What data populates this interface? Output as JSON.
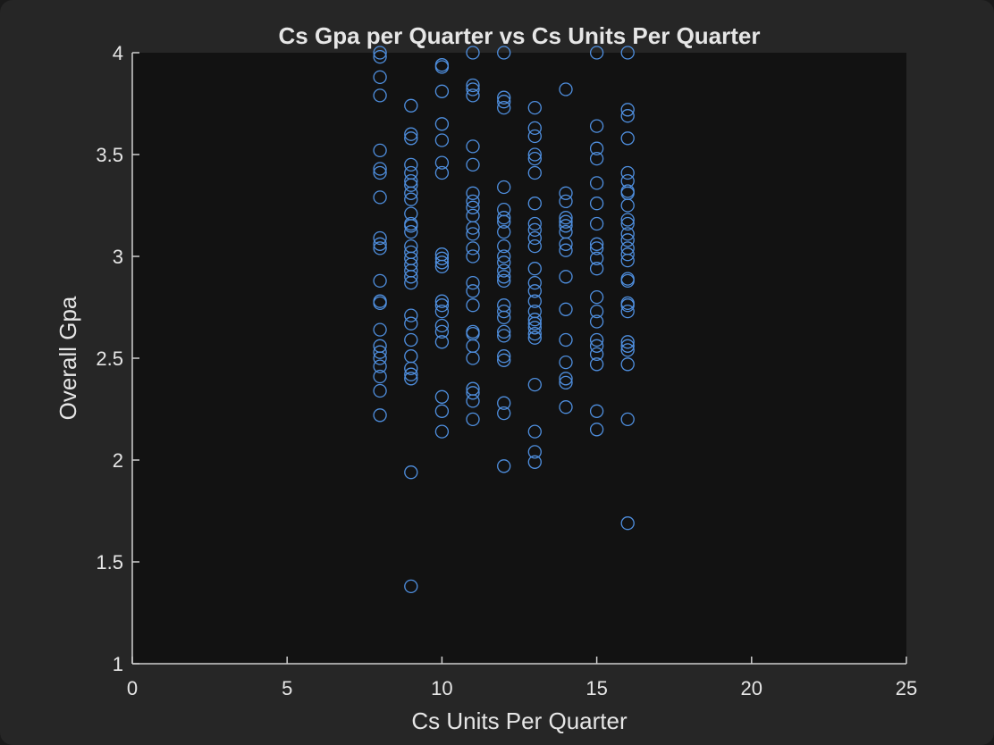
{
  "chart_data": {
    "type": "scatter",
    "title": "Cs Gpa per Quarter vs Cs Units Per Quarter",
    "xlabel": "Cs Units Per Quarter",
    "ylabel": "Overall Gpa",
    "xlim": [
      0,
      25
    ],
    "ylim": [
      1,
      4
    ],
    "xticks": [
      "0",
      "5",
      "10",
      "15",
      "20",
      "25"
    ],
    "yticks": [
      "1",
      "1.5",
      "2",
      "2.5",
      "3",
      "3.5",
      "4"
    ],
    "grid": false,
    "marker": "open-circle",
    "colors": {
      "marker": "#4f8fdf",
      "axes_background": "#121212",
      "figure_background": "#262626",
      "axis_line": "#cfcfcf",
      "text": "#e6e6e6"
    },
    "series": [
      {
        "points": [
          [
            8,
            4.0
          ],
          [
            8,
            3.98
          ],
          [
            8,
            3.88
          ],
          [
            8,
            3.79
          ],
          [
            8,
            3.52
          ],
          [
            8,
            3.43
          ],
          [
            8,
            3.41
          ],
          [
            8,
            3.29
          ],
          [
            8,
            3.09
          ],
          [
            8,
            3.06
          ],
          [
            8,
            3.04
          ],
          [
            8,
            2.88
          ],
          [
            8,
            2.78
          ],
          [
            8,
            2.77
          ],
          [
            8,
            2.64
          ],
          [
            8,
            2.56
          ],
          [
            8,
            2.53
          ],
          [
            8,
            2.5
          ],
          [
            8,
            2.46
          ],
          [
            8,
            2.41
          ],
          [
            8,
            2.34
          ],
          [
            8,
            2.22
          ],
          [
            9,
            3.74
          ],
          [
            9,
            3.6
          ],
          [
            9,
            3.58
          ],
          [
            9,
            3.45
          ],
          [
            9,
            3.41
          ],
          [
            9,
            3.37
          ],
          [
            9,
            3.35
          ],
          [
            9,
            3.31
          ],
          [
            9,
            3.28
          ],
          [
            9,
            3.21
          ],
          [
            9,
            3.16
          ],
          [
            9,
            3.15
          ],
          [
            9,
            3.12
          ],
          [
            9,
            3.05
          ],
          [
            9,
            3.02
          ],
          [
            9,
            2.99
          ],
          [
            9,
            2.96
          ],
          [
            9,
            2.93
          ],
          [
            9,
            2.9
          ],
          [
            9,
            2.87
          ],
          [
            9,
            2.71
          ],
          [
            9,
            2.67
          ],
          [
            9,
            2.59
          ],
          [
            9,
            2.51
          ],
          [
            9,
            2.45
          ],
          [
            9,
            2.42
          ],
          [
            9,
            2.4
          ],
          [
            9,
            1.94
          ],
          [
            9,
            1.38
          ],
          [
            10,
            3.94
          ],
          [
            10,
            3.93
          ],
          [
            10,
            3.81
          ],
          [
            10,
            3.65
          ],
          [
            10,
            3.57
          ],
          [
            10,
            3.46
          ],
          [
            10,
            3.41
          ],
          [
            10,
            3.01
          ],
          [
            10,
            2.99
          ],
          [
            10,
            2.97
          ],
          [
            10,
            2.95
          ],
          [
            10,
            2.78
          ],
          [
            10,
            2.76
          ],
          [
            10,
            2.73
          ],
          [
            10,
            2.66
          ],
          [
            10,
            2.63
          ],
          [
            10,
            2.58
          ],
          [
            10,
            2.31
          ],
          [
            10,
            2.24
          ],
          [
            10,
            2.14
          ],
          [
            11,
            4.0
          ],
          [
            11,
            3.84
          ],
          [
            11,
            3.82
          ],
          [
            11,
            3.79
          ],
          [
            11,
            3.54
          ],
          [
            11,
            3.45
          ],
          [
            11,
            3.31
          ],
          [
            11,
            3.27
          ],
          [
            11,
            3.24
          ],
          [
            11,
            3.2
          ],
          [
            11,
            3.14
          ],
          [
            11,
            3.11
          ],
          [
            11,
            3.04
          ],
          [
            11,
            3.0
          ],
          [
            11,
            2.87
          ],
          [
            11,
            2.83
          ],
          [
            11,
            2.76
          ],
          [
            11,
            2.63
          ],
          [
            11,
            2.62
          ],
          [
            11,
            2.56
          ],
          [
            11,
            2.5
          ],
          [
            11,
            2.35
          ],
          [
            11,
            2.33
          ],
          [
            11,
            2.29
          ],
          [
            11,
            2.2
          ],
          [
            12,
            4.0
          ],
          [
            12,
            3.78
          ],
          [
            12,
            3.76
          ],
          [
            12,
            3.73
          ],
          [
            12,
            3.34
          ],
          [
            12,
            3.23
          ],
          [
            12,
            3.19
          ],
          [
            12,
            3.17
          ],
          [
            12,
            3.12
          ],
          [
            12,
            3.05
          ],
          [
            12,
            3.0
          ],
          [
            12,
            2.97
          ],
          [
            12,
            2.93
          ],
          [
            12,
            2.9
          ],
          [
            12,
            2.88
          ],
          [
            12,
            2.76
          ],
          [
            12,
            2.73
          ],
          [
            12,
            2.7
          ],
          [
            12,
            2.63
          ],
          [
            12,
            2.61
          ],
          [
            12,
            2.51
          ],
          [
            12,
            2.49
          ],
          [
            12,
            2.28
          ],
          [
            12,
            2.23
          ],
          [
            12,
            1.97
          ],
          [
            13,
            3.73
          ],
          [
            13,
            3.63
          ],
          [
            13,
            3.59
          ],
          [
            13,
            3.5
          ],
          [
            13,
            3.48
          ],
          [
            13,
            3.41
          ],
          [
            13,
            3.26
          ],
          [
            13,
            3.16
          ],
          [
            13,
            3.13
          ],
          [
            13,
            3.09
          ],
          [
            13,
            3.05
          ],
          [
            13,
            2.94
          ],
          [
            13,
            2.87
          ],
          [
            13,
            2.83
          ],
          [
            13,
            2.78
          ],
          [
            13,
            2.73
          ],
          [
            13,
            2.69
          ],
          [
            13,
            2.67
          ],
          [
            13,
            2.65
          ],
          [
            13,
            2.62
          ],
          [
            13,
            2.6
          ],
          [
            13,
            2.37
          ],
          [
            13,
            2.14
          ],
          [
            13,
            2.04
          ],
          [
            13,
            1.99
          ],
          [
            14,
            3.82
          ],
          [
            14,
            3.31
          ],
          [
            14,
            3.27
          ],
          [
            14,
            3.19
          ],
          [
            14,
            3.17
          ],
          [
            14,
            3.15
          ],
          [
            14,
            3.12
          ],
          [
            14,
            3.06
          ],
          [
            14,
            3.03
          ],
          [
            14,
            2.9
          ],
          [
            14,
            2.74
          ],
          [
            14,
            2.59
          ],
          [
            14,
            2.48
          ],
          [
            14,
            2.4
          ],
          [
            14,
            2.38
          ],
          [
            14,
            2.26
          ],
          [
            15,
            4.0
          ],
          [
            15,
            3.64
          ],
          [
            15,
            3.53
          ],
          [
            15,
            3.48
          ],
          [
            15,
            3.36
          ],
          [
            15,
            3.26
          ],
          [
            15,
            3.16
          ],
          [
            15,
            3.06
          ],
          [
            15,
            3.04
          ],
          [
            15,
            2.99
          ],
          [
            15,
            2.94
          ],
          [
            15,
            2.8
          ],
          [
            15,
            2.73
          ],
          [
            15,
            2.68
          ],
          [
            15,
            2.59
          ],
          [
            15,
            2.56
          ],
          [
            15,
            2.52
          ],
          [
            15,
            2.47
          ],
          [
            15,
            2.24
          ],
          [
            15,
            2.15
          ],
          [
            16,
            4.0
          ],
          [
            16,
            3.72
          ],
          [
            16,
            3.69
          ],
          [
            16,
            3.58
          ],
          [
            16,
            3.41
          ],
          [
            16,
            3.37
          ],
          [
            16,
            3.32
          ],
          [
            16,
            3.31
          ],
          [
            16,
            3.25
          ],
          [
            16,
            3.18
          ],
          [
            16,
            3.16
          ],
          [
            16,
            3.11
          ],
          [
            16,
            3.08
          ],
          [
            16,
            3.04
          ],
          [
            16,
            3.01
          ],
          [
            16,
            2.98
          ],
          [
            16,
            2.89
          ],
          [
            16,
            2.88
          ],
          [
            16,
            2.77
          ],
          [
            16,
            2.76
          ],
          [
            16,
            2.73
          ],
          [
            16,
            2.58
          ],
          [
            16,
            2.56
          ],
          [
            16,
            2.54
          ],
          [
            16,
            2.47
          ],
          [
            16,
            2.2
          ],
          [
            16,
            1.69
          ]
        ]
      }
    ]
  }
}
